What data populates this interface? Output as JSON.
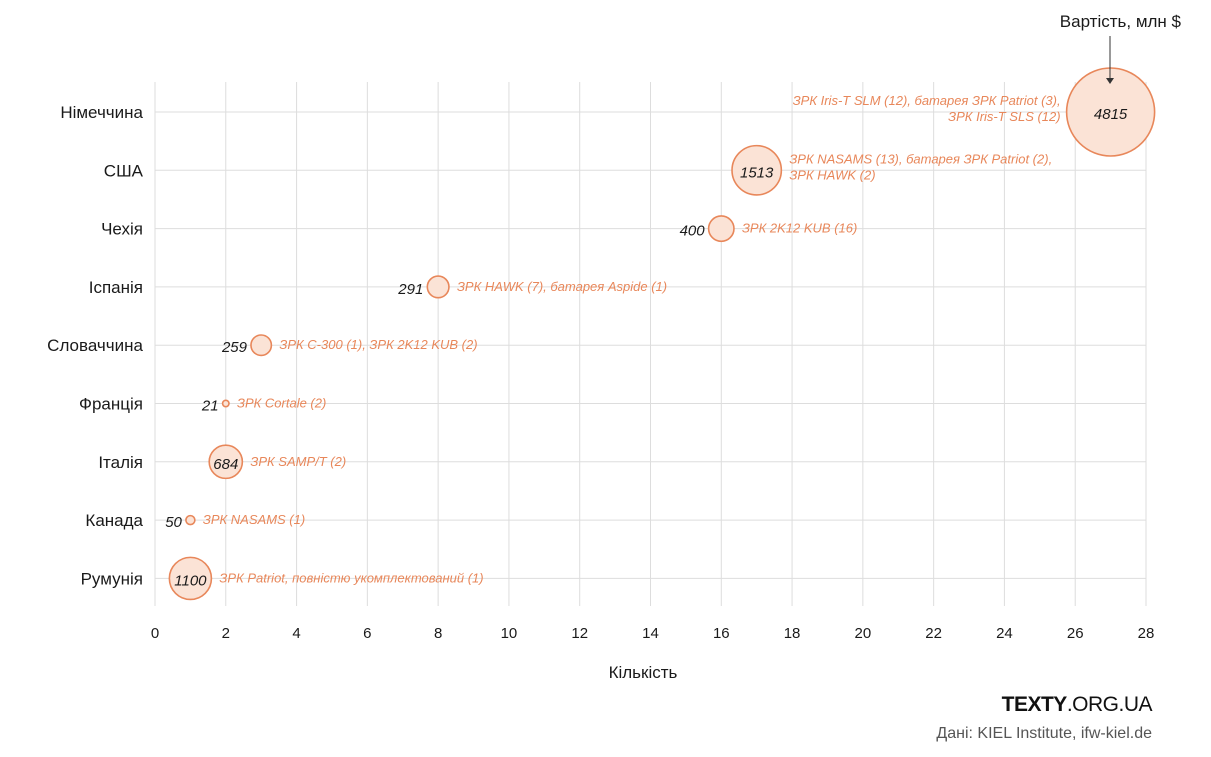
{
  "chart_data": {
    "type": "scatter",
    "xlabel": "Кількість",
    "size_label": "Вартість, млн $",
    "xlim": [
      0,
      28
    ],
    "xticks": [
      0,
      2,
      4,
      6,
      8,
      10,
      12,
      14,
      16,
      18,
      20,
      22,
      24,
      26,
      28
    ],
    "grid": true,
    "points": [
      {
        "country": "Німеччина",
        "x": 27,
        "value": 4815,
        "desc_lines": [
          "ЗРК Iris-T SLM (12), батарея ЗРК Patriot (3),",
          "ЗРК Iris-T SLS (12)"
        ]
      },
      {
        "country": "США",
        "x": 17,
        "value": 1513,
        "desc_lines": [
          "ЗРК NASAMS (13), батарея ЗРК Patriot (2),",
          "ЗРК HAWK (2)"
        ]
      },
      {
        "country": "Чехія",
        "x": 16,
        "value": 400,
        "desc_lines": [
          "ЗРК 2K12 KUB (16)"
        ]
      },
      {
        "country": "Іспанія",
        "x": 8,
        "value": 291,
        "desc_lines": [
          "ЗРК HAWK (7), батарея Aspide (1)"
        ]
      },
      {
        "country": "Словаччина",
        "x": 3,
        "value": 259,
        "desc_lines": [
          "ЗРК С-300 (1), ЗРК 2K12 KUB (2)"
        ]
      },
      {
        "country": "Франція",
        "x": 2,
        "value": 21,
        "desc_lines": [
          "ЗРК Cortale (2)"
        ]
      },
      {
        "country": "Італія",
        "x": 2,
        "value": 684,
        "desc_lines": [
          "ЗРК SAMP/T (2)"
        ]
      },
      {
        "country": "Канада",
        "x": 1,
        "value": 50,
        "desc_lines": [
          "ЗРК NASAMS (1)"
        ]
      },
      {
        "country": "Румунія",
        "x": 1,
        "value": 1100,
        "desc_lines": [
          "ЗРК Patriot, повністю укомплектований (1)"
        ]
      }
    ],
    "colors": {
      "bubble_fill": "#fbe3d6",
      "bubble_stroke": "#e8875a",
      "description": "#e8875a",
      "grid": "#dddddd"
    }
  },
  "footer": {
    "brand_bold": "TEXTY",
    "brand_light": ".ORG.UA",
    "source": "Дані: KIEL Institute, ifw-kiel.de"
  }
}
